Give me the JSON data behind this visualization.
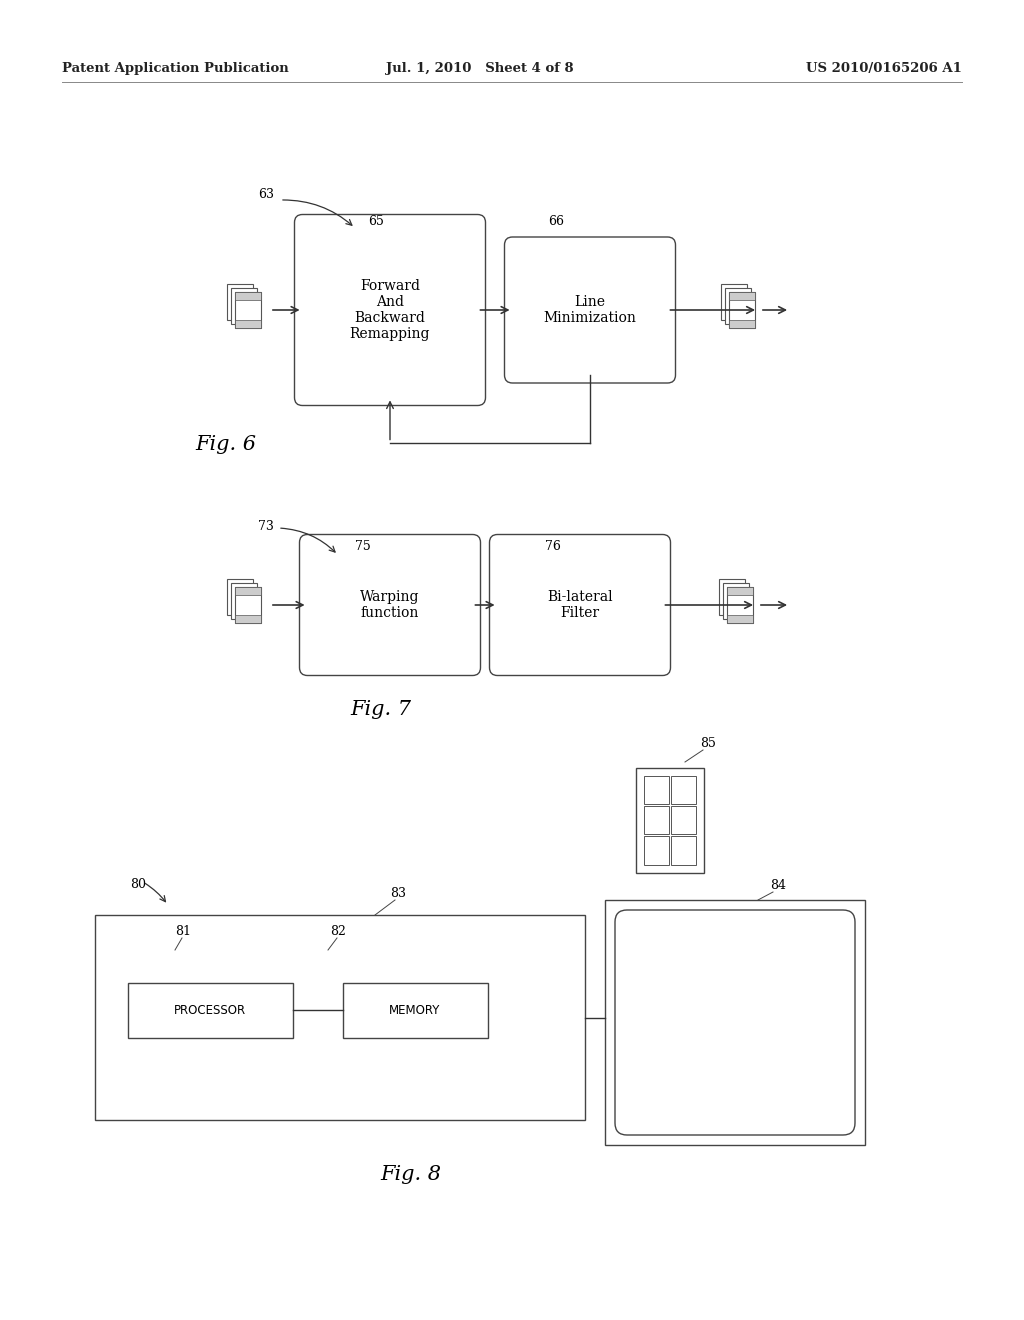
{
  "bg_color": "#ffffff",
  "header_left": "Patent Application Publication",
  "header_center": "Jul. 1, 2010   Sheet 4 of 8",
  "header_right": "US 2010/0165206 A1",
  "fig6_label": "Fig. 6",
  "fig6_ref": "63",
  "fig6_box1_label": "65",
  "fig6_box1_text": "Forward\nAnd\nBackward\nRemapping",
  "fig6_box2_label": "66",
  "fig6_box2_text": "Line\nMinimization",
  "fig7_label": "Fig. 7",
  "fig7_ref": "73",
  "fig7_box1_label": "75",
  "fig7_box1_text": "Warping\nfunction",
  "fig7_box2_label": "76",
  "fig7_box2_text": "Bi-lateral\nFilter",
  "fig8_label": "Fig. 8",
  "fig8_ref": "80",
  "fig8_outer_label": "83",
  "fig8_box1_label": "81",
  "fig8_box1_text": "PROCESSOR",
  "fig8_box2_label": "82",
  "fig8_box2_text": "MEMORY",
  "fig8_monitor_label": "84",
  "fig8_phone_label": "85"
}
